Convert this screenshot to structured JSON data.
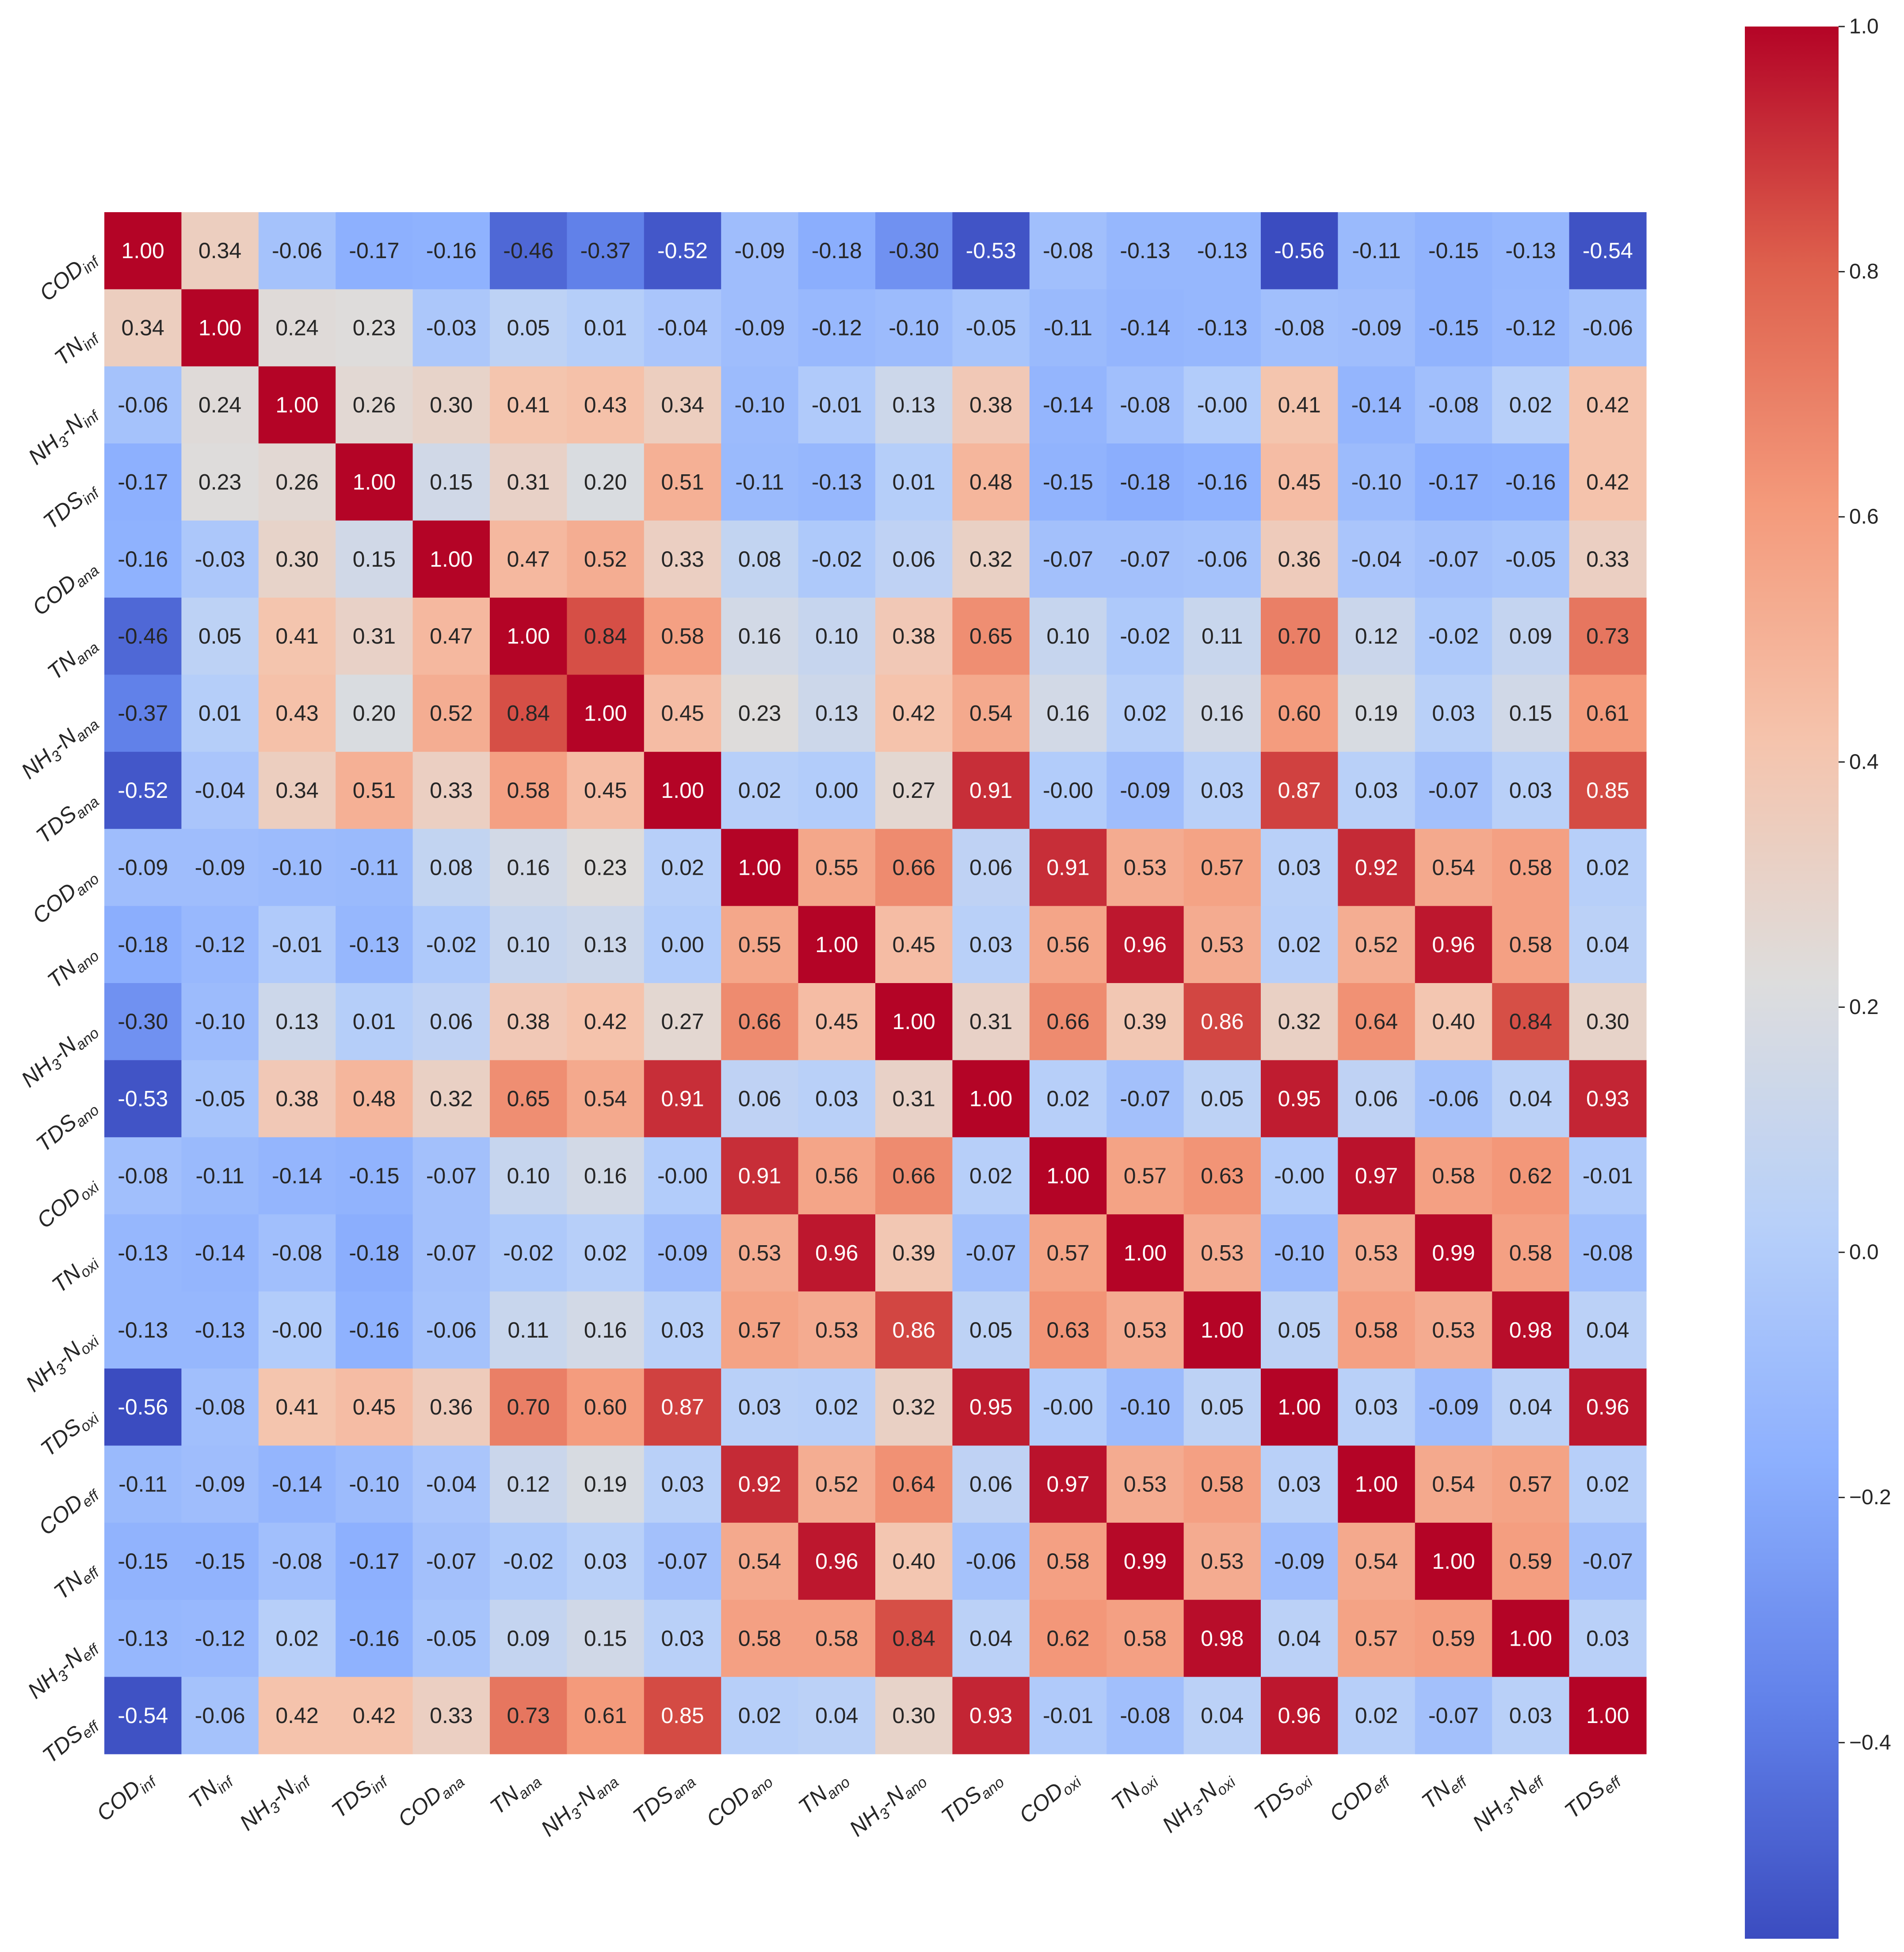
{
  "chart_data": {
    "type": "heatmap",
    "title": "",
    "colormap": "coolwarm",
    "vmin": -0.56,
    "vmax": 1.0,
    "value_format": "0.00",
    "labels": [
      {
        "base": "COD",
        "sub": "inf"
      },
      {
        "base": "TN",
        "sub": "inf"
      },
      {
        "base": "NH3-N",
        "sub": "inf"
      },
      {
        "base": "TDS",
        "sub": "inf"
      },
      {
        "base": "COD",
        "sub": "ana"
      },
      {
        "base": "TN",
        "sub": "ana"
      },
      {
        "base": "NH3-N",
        "sub": "ana"
      },
      {
        "base": "TDS",
        "sub": "ana"
      },
      {
        "base": "COD",
        "sub": "ano"
      },
      {
        "base": "TN",
        "sub": "ano"
      },
      {
        "base": "NH3-N",
        "sub": "ano"
      },
      {
        "base": "TDS",
        "sub": "ano"
      },
      {
        "base": "COD",
        "sub": "oxi"
      },
      {
        "base": "TN",
        "sub": "oxi"
      },
      {
        "base": "NH3-N",
        "sub": "oxi"
      },
      {
        "base": "TDS",
        "sub": "oxi"
      },
      {
        "base": "COD",
        "sub": "eff"
      },
      {
        "base": "TN",
        "sub": "eff"
      },
      {
        "base": "NH3-N",
        "sub": "eff"
      },
      {
        "base": "TDS",
        "sub": "eff"
      }
    ],
    "display_values": [
      [
        "1.00",
        "0.34",
        "-0.06",
        "-0.17",
        "-0.16",
        "-0.46",
        "-0.37",
        "-0.52",
        "-0.09",
        "-0.18",
        "-0.30",
        "-0.53",
        "-0.08",
        "-0.13",
        "-0.13",
        "-0.56",
        "-0.11",
        "-0.15",
        "-0.13",
        "-0.54"
      ],
      [
        "0.34",
        "1.00",
        "0.24",
        "0.23",
        "-0.03",
        "0.05",
        "0.01",
        "-0.04",
        "-0.09",
        "-0.12",
        "-0.10",
        "-0.05",
        "-0.11",
        "-0.14",
        "-0.13",
        "-0.08",
        "-0.09",
        "-0.15",
        "-0.12",
        "-0.06"
      ],
      [
        "-0.06",
        "0.24",
        "1.00",
        "0.26",
        "0.30",
        "0.41",
        "0.43",
        "0.34",
        "-0.10",
        "-0.01",
        "0.13",
        "0.38",
        "-0.14",
        "-0.08",
        "-0.00",
        "0.41",
        "-0.14",
        "-0.08",
        "0.02",
        "0.42"
      ],
      [
        "-0.17",
        "0.23",
        "0.26",
        "1.00",
        "0.15",
        "0.31",
        "0.20",
        "0.51",
        "-0.11",
        "-0.13",
        "0.01",
        "0.48",
        "-0.15",
        "-0.18",
        "-0.16",
        "0.45",
        "-0.10",
        "-0.17",
        "-0.16",
        "0.42"
      ],
      [
        "-0.16",
        "-0.03",
        "0.30",
        "0.15",
        "1.00",
        "0.47",
        "0.52",
        "0.33",
        "0.08",
        "-0.02",
        "0.06",
        "0.32",
        "-0.07",
        "-0.07",
        "-0.06",
        "0.36",
        "-0.04",
        "-0.07",
        "-0.05",
        "0.33"
      ],
      [
        "-0.46",
        "0.05",
        "0.41",
        "0.31",
        "0.47",
        "1.00",
        "0.84",
        "0.58",
        "0.16",
        "0.10",
        "0.38",
        "0.65",
        "0.10",
        "-0.02",
        "0.11",
        "0.70",
        "0.12",
        "-0.02",
        "0.09",
        "0.73"
      ],
      [
        "-0.37",
        "0.01",
        "0.43",
        "0.20",
        "0.52",
        "0.84",
        "1.00",
        "0.45",
        "0.23",
        "0.13",
        "0.42",
        "0.54",
        "0.16",
        "0.02",
        "0.16",
        "0.60",
        "0.19",
        "0.03",
        "0.15",
        "0.61"
      ],
      [
        "-0.52",
        "-0.04",
        "0.34",
        "0.51",
        "0.33",
        "0.58",
        "0.45",
        "1.00",
        "0.02",
        "0.00",
        "0.27",
        "0.91",
        "-0.00",
        "-0.09",
        "0.03",
        "0.87",
        "0.03",
        "-0.07",
        "0.03",
        "0.85"
      ],
      [
        "-0.09",
        "-0.09",
        "-0.10",
        "-0.11",
        "0.08",
        "0.16",
        "0.23",
        "0.02",
        "1.00",
        "0.55",
        "0.66",
        "0.06",
        "0.91",
        "0.53",
        "0.57",
        "0.03",
        "0.92",
        "0.54",
        "0.58",
        "0.02"
      ],
      [
        "-0.18",
        "-0.12",
        "-0.01",
        "-0.13",
        "-0.02",
        "0.10",
        "0.13",
        "0.00",
        "0.55",
        "1.00",
        "0.45",
        "0.03",
        "0.56",
        "0.96",
        "0.53",
        "0.02",
        "0.52",
        "0.96",
        "0.58",
        "0.04"
      ],
      [
        "-0.30",
        "-0.10",
        "0.13",
        "0.01",
        "0.06",
        "0.38",
        "0.42",
        "0.27",
        "0.66",
        "0.45",
        "1.00",
        "0.31",
        "0.66",
        "0.39",
        "0.86",
        "0.32",
        "0.64",
        "0.40",
        "0.84",
        "0.30"
      ],
      [
        "-0.53",
        "-0.05",
        "0.38",
        "0.48",
        "0.32",
        "0.65",
        "0.54",
        "0.91",
        "0.06",
        "0.03",
        "0.31",
        "1.00",
        "0.02",
        "-0.07",
        "0.05",
        "0.95",
        "0.06",
        "-0.06",
        "0.04",
        "0.93"
      ],
      [
        "-0.08",
        "-0.11",
        "-0.14",
        "-0.15",
        "-0.07",
        "0.10",
        "0.16",
        "-0.00",
        "0.91",
        "0.56",
        "0.66",
        "0.02",
        "1.00",
        "0.57",
        "0.63",
        "-0.00",
        "0.97",
        "0.58",
        "0.62",
        "-0.01"
      ],
      [
        "-0.13",
        "-0.14",
        "-0.08",
        "-0.18",
        "-0.07",
        "-0.02",
        "0.02",
        "-0.09",
        "0.53",
        "0.96",
        "0.39",
        "-0.07",
        "0.57",
        "1.00",
        "0.53",
        "-0.10",
        "0.53",
        "0.99",
        "0.58",
        "-0.08"
      ],
      [
        "-0.13",
        "-0.13",
        "-0.00",
        "-0.16",
        "-0.06",
        "0.11",
        "0.16",
        "0.03",
        "0.57",
        "0.53",
        "0.86",
        "0.05",
        "0.63",
        "0.53",
        "1.00",
        "0.05",
        "0.58",
        "0.53",
        "0.98",
        "0.04"
      ],
      [
        "-0.56",
        "-0.08",
        "0.41",
        "0.45",
        "0.36",
        "0.70",
        "0.60",
        "0.87",
        "0.03",
        "0.02",
        "0.32",
        "0.95",
        "-0.00",
        "-0.10",
        "0.05",
        "1.00",
        "0.03",
        "-0.09",
        "0.04",
        "0.96"
      ],
      [
        "-0.11",
        "-0.09",
        "-0.14",
        "-0.10",
        "-0.04",
        "0.12",
        "0.19",
        "0.03",
        "0.92",
        "0.52",
        "0.64",
        "0.06",
        "0.97",
        "0.53",
        "0.58",
        "0.03",
        "1.00",
        "0.54",
        "0.57",
        "0.02"
      ],
      [
        "-0.15",
        "-0.15",
        "-0.08",
        "-0.17",
        "-0.07",
        "-0.02",
        "0.03",
        "-0.07",
        "0.54",
        "0.96",
        "0.40",
        "-0.06",
        "0.58",
        "0.99",
        "0.53",
        "-0.09",
        "0.54",
        "1.00",
        "0.59",
        "-0.07"
      ],
      [
        "-0.13",
        "-0.12",
        "0.02",
        "-0.16",
        "-0.05",
        "0.09",
        "0.15",
        "0.03",
        "0.58",
        "0.58",
        "0.84",
        "0.04",
        "0.62",
        "0.58",
        "0.98",
        "0.04",
        "0.57",
        "0.59",
        "1.00",
        "0.03"
      ],
      [
        "-0.54",
        "-0.06",
        "0.42",
        "0.42",
        "0.33",
        "0.73",
        "0.61",
        "0.85",
        "0.02",
        "0.04",
        "0.30",
        "0.93",
        "-0.01",
        "-0.08",
        "0.04",
        "0.96",
        "0.02",
        "-0.07",
        "0.03",
        "1.00"
      ]
    ],
    "colorbar": {
      "ticks": [
        1.0,
        0.8,
        0.6,
        0.4,
        0.2,
        0.0,
        -0.2,
        -0.4
      ],
      "tick_labels": [
        "1.0",
        "0.8",
        "0.6",
        "0.4",
        "0.2",
        "0.0",
        "−0.2",
        "−0.4"
      ]
    }
  }
}
